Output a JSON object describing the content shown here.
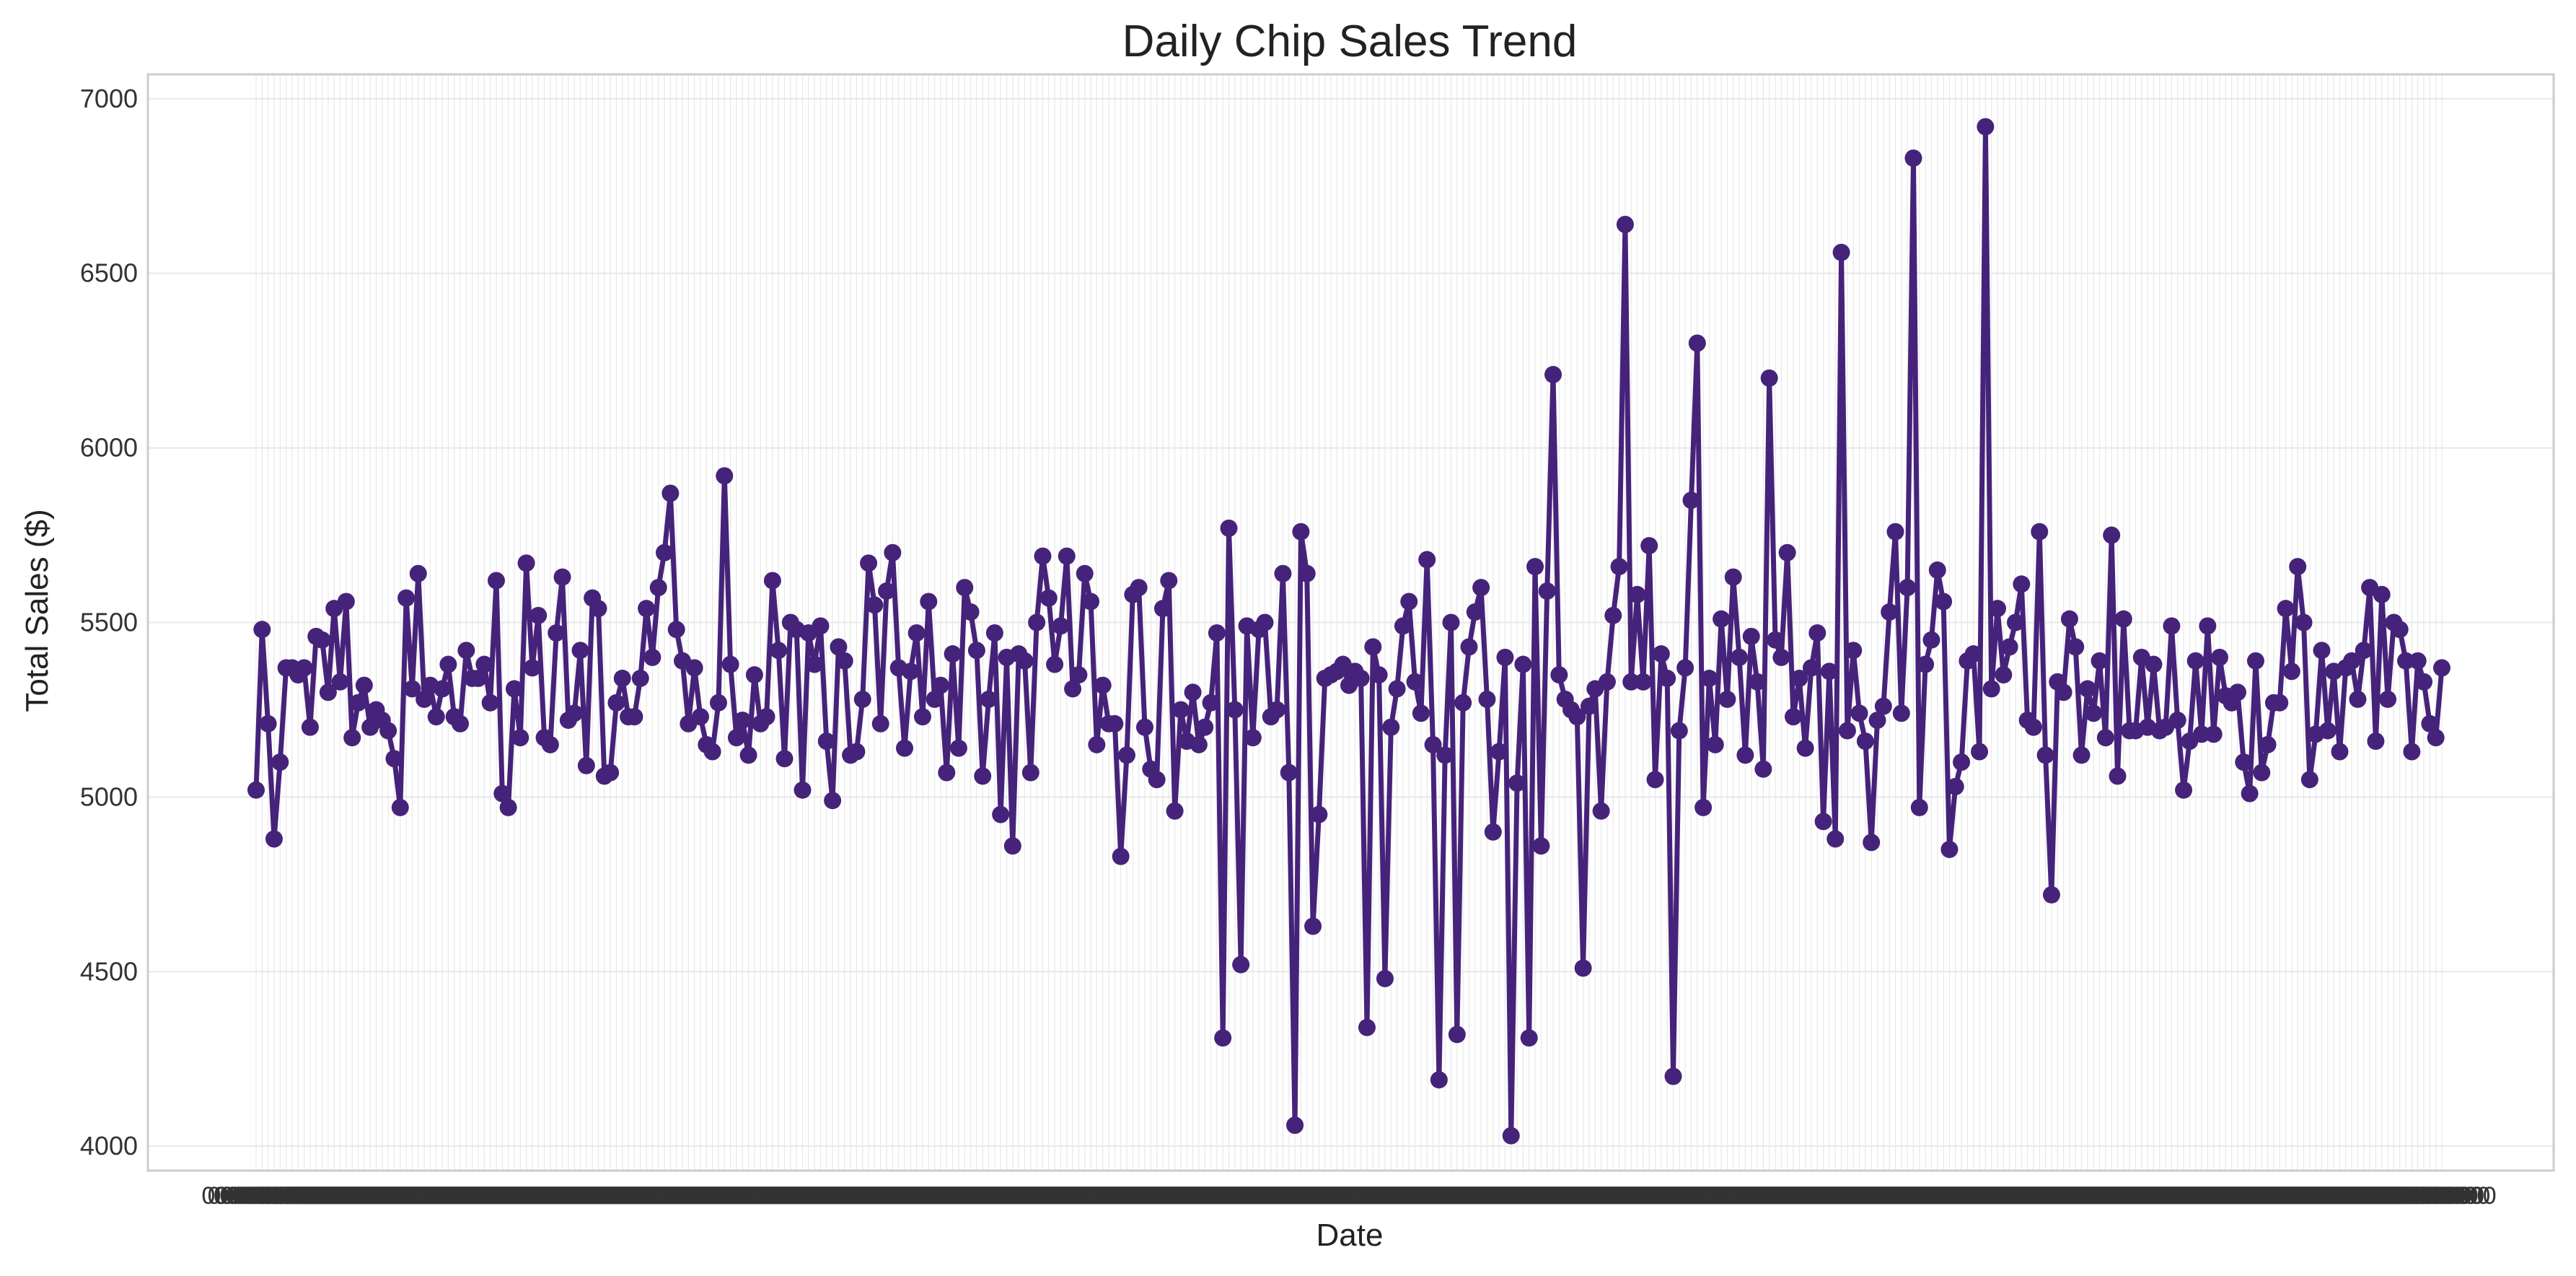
{
  "chart_data": {
    "type": "line",
    "title": "Daily Chip Sales Trend",
    "xlabel": "Date",
    "ylabel": "Total Sales ($)",
    "ylim": [
      3930,
      7070
    ],
    "yticks": [
      4000,
      4500,
      5000,
      5500,
      6000,
      6500,
      7000
    ],
    "grid": true,
    "legend": "none",
    "style": {
      "line_color": "#46237a",
      "marker_color": "#46237a",
      "grid_color": "#e8e8e8",
      "frame_color": "#cccccc"
    },
    "series": [
      {
        "values": [
          5020,
          5480,
          5210,
          4880,
          5100,
          5370,
          5370,
          5350,
          5370,
          5200,
          5460,
          5450,
          5300,
          5540,
          5330,
          5560,
          5170,
          5270,
          5320,
          5200,
          5250,
          5220,
          5190,
          5110,
          4970,
          5570,
          5310,
          5640,
          5280,
          5320,
          5230,
          5310,
          5380,
          5230,
          5210,
          5420,
          5340,
          5340,
          5380,
          5270,
          5620,
          5010,
          4970,
          5310,
          5170,
          5670,
          5370,
          5520,
          5170,
          5150,
          5470,
          5630,
          5220,
          5240,
          5420,
          5090,
          5570,
          5540,
          5060,
          5070,
          5270,
          5340,
          5230,
          5230,
          5340,
          5540,
          5400,
          5600,
          5700,
          5870,
          5480,
          5390,
          5210,
          5370,
          5230,
          5150,
          5130,
          5270,
          5920,
          5380,
          5170,
          5220,
          5120,
          5350,
          5210,
          5230,
          5620,
          5420,
          5110,
          5500,
          5480,
          5020,
          5470,
          5380,
          5490,
          5160,
          4990,
          5430,
          5390,
          5120,
          5130,
          5280,
          5670,
          5550,
          5210,
          5590,
          5700,
          5370,
          5140,
          5360,
          5470,
          5230,
          5560,
          5280,
          5320,
          5070,
          5410,
          5140,
          5600,
          5530,
          5420,
          5060,
          5280,
          5470,
          4950,
          5400,
          4860,
          5410,
          5390,
          5070,
          5500,
          5690,
          5570,
          5380,
          5490,
          5690,
          5310,
          5350,
          5640,
          5560,
          5150,
          5320,
          5210,
          5210,
          4830,
          5120,
          5580,
          5600,
          5200,
          5080,
          5050,
          5540,
          5620,
          4960,
          5250,
          5160,
          5300,
          5150,
          5200,
          5270,
          5470,
          4310,
          5770,
          5250,
          4520,
          5490,
          5170,
          5480,
          5500,
          5230,
          5250,
          5640,
          5070,
          4060,
          5760,
          5640,
          4630,
          4950,
          5340,
          5350,
          5360,
          5380,
          5320,
          5360,
          5340,
          4340,
          5430,
          5350,
          4480,
          5200,
          5310,
          5490,
          5560,
          5330,
          5240,
          5680,
          5150,
          4190,
          5120,
          5500,
          4320,
          5270,
          5430,
          5530,
          5600,
          5280,
          4900,
          5130,
          5400,
          4030,
          5040,
          5380,
          4310,
          5660,
          4860,
          5590,
          6210,
          5350,
          5280,
          5250,
          5230,
          4510,
          5260,
          5310,
          4960,
          5330,
          5520,
          5660,
          6640,
          5330,
          5580,
          5330,
          5720,
          5050,
          5410,
          5340,
          4200,
          5190,
          5370,
          5850,
          6300,
          4970,
          5340,
          5150,
          5510,
          5280,
          5630,
          5400,
          5120,
          5460,
          5330,
          5080,
          6200,
          5450,
          5400,
          5700,
          5230,
          5340,
          5140,
          5370,
          5470,
          4930,
          5360,
          4880,
          6560,
          5190,
          5420,
          5240,
          5160,
          4870,
          5220,
          5260,
          5530,
          5760,
          5240,
          5600,
          6830,
          4970,
          5380,
          5450,
          5650,
          5560,
          4850,
          5030,
          5100,
          5390,
          5410,
          5130,
          6920,
          5310,
          5540,
          5350,
          5430,
          5500,
          5610,
          5220,
          5200,
          5760,
          5120,
          4720,
          5330,
          5300,
          5510,
          5430,
          5120,
          5310,
          5240,
          5390,
          5170,
          5750,
          5060,
          5510,
          5190,
          5190,
          5400,
          5200,
          5380,
          5190,
          5200,
          5490,
          5220,
          5020,
          5160,
          5390,
          5180,
          5490,
          5180,
          5400,
          5290,
          5270,
          5300,
          5100,
          5010,
          5390,
          5070,
          5150,
          5270,
          5270,
          5540,
          5360,
          5660,
          5500,
          5050,
          5180,
          5420,
          5190,
          5360,
          5130,
          5370,
          5390,
          5280,
          5420,
          5600,
          5160,
          5580,
          5280,
          5500,
          5480,
          5390,
          5130,
          5390,
          5330,
          5210,
          5170,
          5370
        ]
      }
    ]
  }
}
